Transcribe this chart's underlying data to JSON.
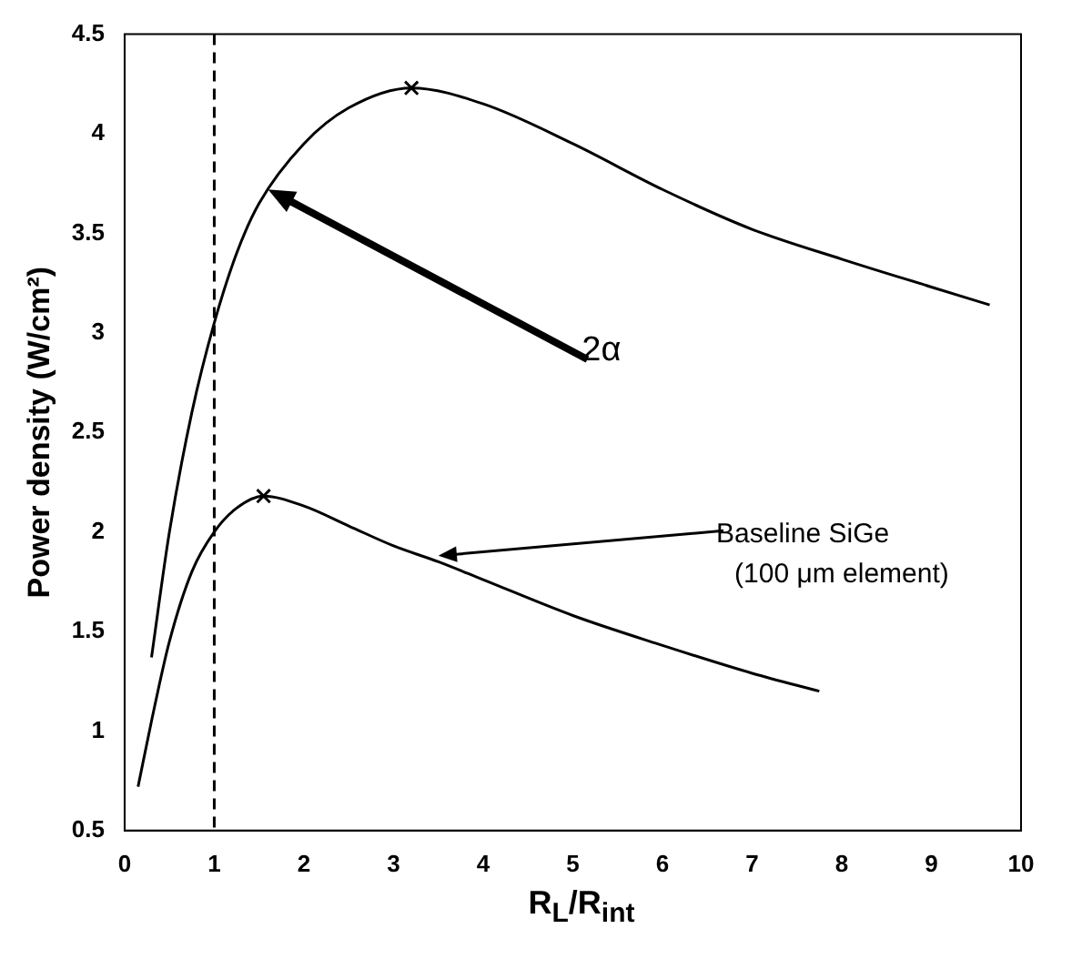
{
  "chart_data": {
    "type": "line",
    "xlabel": "R$_{L}$/R$_{int}$",
    "ylabel": "Power density (W/cm²)",
    "xlim": [
      0,
      10
    ],
    "ylim": [
      0.5,
      4.5
    ],
    "xticks": [
      0,
      1,
      2,
      3,
      4,
      5,
      6,
      7,
      8,
      9,
      10
    ],
    "yticks": [
      0.5,
      1,
      1.5,
      2,
      2.5,
      3,
      3.5,
      4,
      4.5
    ],
    "grid": false,
    "legend": false,
    "marker": "none",
    "line_style": "solid",
    "series": [
      {
        "type": "line",
        "color": "#000000",
        "x": [
          0.3,
          0.5,
          0.75,
          1.0,
          1.25,
          1.5,
          2.0,
          2.5,
          3.2,
          4,
          5,
          6,
          7,
          8,
          9,
          9.65
        ],
        "values": [
          1.37,
          2.0,
          2.6,
          3.05,
          3.4,
          3.65,
          3.95,
          4.13,
          4.23,
          4.15,
          3.95,
          3.72,
          3.52,
          3.37,
          3.23,
          3.14
        ]
      },
      {
        "type": "line",
        "color": "#000000",
        "x": [
          0.15,
          0.3,
          0.5,
          0.75,
          1.0,
          1.25,
          1.55,
          2,
          2.5,
          3,
          3.5,
          4,
          5,
          6,
          7,
          7.75
        ],
        "values": [
          0.72,
          1.05,
          1.45,
          1.8,
          2.0,
          2.12,
          2.18,
          2.13,
          2.03,
          1.93,
          1.85,
          1.76,
          1.58,
          1.43,
          1.29,
          1.2
        ]
      },
      {
        "type": "scatter",
        "marker": "cross",
        "color": "#000000",
        "x": [
          3.2,
          1.55
        ],
        "values": [
          4.23,
          2.18
        ]
      }
    ],
    "ref_lines": [
      {
        "axis": "x",
        "value": 1,
        "line_style": "dashed",
        "color": "#000000"
      }
    ],
    "annotations": [
      {
        "text": "2α",
        "x": 1.6,
        "y": 3.72
      },
      {
        "text": "Baseline SiGe\n(100 μm element)",
        "x": 3.5,
        "y": 1.88
      }
    ]
  }
}
